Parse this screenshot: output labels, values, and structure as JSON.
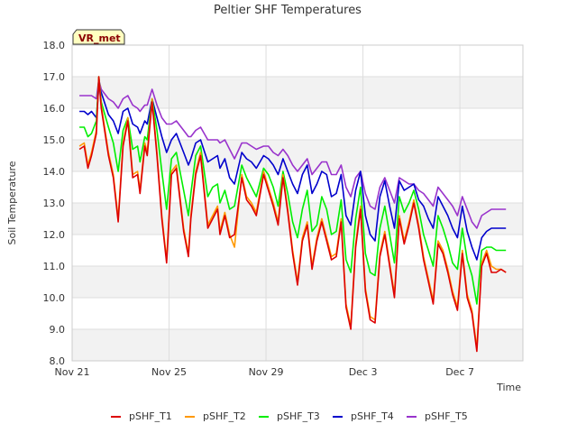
{
  "chart_data": {
    "type": "line",
    "title": "Peltier SHF Temperatures",
    "xlabel": "Time",
    "ylabel": "Soil Temperature",
    "badge": "VR_met",
    "ylim": [
      8.0,
      18.0
    ],
    "yticks": [
      "8.0",
      "9.0",
      "10.0",
      "11.0",
      "12.0",
      "13.0",
      "14.0",
      "15.0",
      "16.0",
      "17.0",
      "18.0"
    ],
    "xlim": [
      0,
      18.6
    ],
    "xticks": [
      {
        "label": "Nov 21",
        "day": 0
      },
      {
        "label": "Nov 25",
        "day": 4
      },
      {
        "label": "Nov 29",
        "day": 8
      },
      {
        "label": "Dec 3",
        "day": 12
      },
      {
        "label": "Dec 7",
        "day": 16
      }
    ],
    "grid": true,
    "legend_position": "bottom",
    "series": [
      {
        "name": "pSHF_T1",
        "color": "#dd0000",
        "x": [
          0.3,
          0.5,
          0.65,
          0.8,
          1.0,
          1.1,
          1.2,
          1.5,
          1.7,
          1.9,
          2.1,
          2.3,
          2.5,
          2.7,
          2.8,
          3.0,
          3.1,
          3.3,
          3.5,
          3.7,
          3.9,
          4.1,
          4.3,
          4.6,
          4.8,
          4.9,
          5.1,
          5.3,
          5.6,
          5.8,
          6.0,
          6.1,
          6.3,
          6.5,
          6.7,
          7.0,
          7.2,
          7.4,
          7.6,
          7.9,
          8.1,
          8.3,
          8.5,
          8.7,
          8.9,
          9.1,
          9.3,
          9.5,
          9.7,
          9.9,
          10.1,
          10.3,
          10.5,
          10.7,
          10.9,
          11.1,
          11.3,
          11.5,
          11.7,
          11.9,
          12.1,
          12.3,
          12.5,
          12.7,
          12.9,
          13.1,
          13.3,
          13.5,
          13.7,
          13.9,
          14.1,
          14.3,
          14.5,
          14.7,
          14.9,
          15.1,
          15.3,
          15.5,
          15.7,
          15.9,
          16.1,
          16.3,
          16.5,
          16.7,
          16.9,
          17.1,
          17.3,
          17.5,
          17.7,
          17.9
        ],
        "y": [
          14.7,
          14.8,
          14.1,
          14.5,
          15.2,
          17.0,
          16.0,
          14.5,
          13.8,
          12.4,
          14.8,
          15.6,
          13.8,
          13.9,
          13.3,
          14.8,
          14.5,
          16.2,
          14.5,
          12.5,
          11.1,
          13.9,
          14.1,
          12.1,
          11.3,
          12.5,
          13.9,
          14.5,
          12.2,
          12.5,
          12.8,
          12.0,
          12.6,
          11.9,
          12.0,
          13.8,
          13.1,
          12.9,
          12.6,
          13.9,
          13.4,
          12.9,
          12.3,
          13.8,
          12.7,
          11.4,
          10.4,
          11.8,
          12.3,
          10.9,
          11.8,
          12.4,
          11.8,
          11.2,
          11.3,
          12.4,
          9.7,
          9.0,
          11.6,
          12.8,
          10.2,
          9.3,
          9.2,
          11.3,
          12.0,
          11.0,
          10.0,
          12.5,
          11.7,
          12.3,
          13.0,
          12.2,
          11.2,
          10.5,
          9.8,
          11.7,
          11.4,
          10.8,
          10.1,
          9.6,
          11.4,
          10.0,
          9.5,
          8.3,
          11.0,
          11.4,
          10.8,
          10.8,
          10.9,
          10.8
        ]
      },
      {
        "name": "pSHF_T2",
        "color": "#ff9900",
        "x": [
          0.3,
          0.5,
          0.65,
          0.8,
          1.0,
          1.1,
          1.2,
          1.5,
          1.7,
          1.9,
          2.1,
          2.3,
          2.5,
          2.7,
          2.8,
          3.0,
          3.1,
          3.3,
          3.5,
          3.7,
          3.9,
          4.1,
          4.3,
          4.6,
          4.8,
          4.9,
          5.1,
          5.3,
          5.6,
          5.8,
          6.0,
          6.1,
          6.3,
          6.5,
          6.7,
          7.0,
          7.2,
          7.4,
          7.6,
          7.9,
          8.1,
          8.3,
          8.5,
          8.7,
          8.9,
          9.1,
          9.3,
          9.5,
          9.7,
          9.9,
          10.1,
          10.3,
          10.5,
          10.7,
          10.9,
          11.1,
          11.3,
          11.5,
          11.7,
          11.9,
          12.1,
          12.3,
          12.5,
          12.7,
          12.9,
          13.1,
          13.3,
          13.5,
          13.7,
          13.9,
          14.1,
          14.3,
          14.5,
          14.7,
          14.9,
          15.1,
          15.3,
          15.5,
          15.7,
          15.9,
          16.1,
          16.3,
          16.5,
          16.7,
          16.9,
          17.1,
          17.3,
          17.5,
          17.7,
          17.9
        ],
        "y": [
          14.8,
          14.9,
          14.2,
          14.6,
          15.3,
          17.0,
          16.1,
          14.6,
          13.9,
          12.5,
          14.9,
          15.7,
          13.9,
          14.0,
          13.4,
          14.9,
          14.6,
          16.3,
          14.6,
          12.6,
          11.2,
          14.0,
          14.2,
          12.2,
          11.4,
          12.6,
          14.0,
          14.6,
          12.3,
          12.6,
          12.9,
          12.1,
          12.7,
          12.0,
          11.6,
          13.9,
          13.2,
          13.0,
          12.7,
          14.0,
          13.5,
          13.0,
          12.4,
          13.9,
          12.8,
          11.5,
          10.5,
          11.9,
          12.4,
          11.0,
          11.9,
          12.5,
          11.9,
          11.3,
          11.4,
          12.5,
          9.8,
          9.1,
          11.7,
          12.9,
          10.3,
          9.4,
          9.3,
          11.4,
          12.1,
          11.1,
          10.1,
          12.6,
          11.8,
          12.4,
          13.1,
          12.3,
          11.3,
          10.6,
          9.9,
          11.8,
          11.5,
          10.9,
          10.2,
          9.7,
          11.5,
          10.1,
          9.6,
          8.4,
          11.1,
          11.5,
          11.0,
          10.9,
          10.9,
          10.8
        ]
      },
      {
        "name": "pSHF_T3",
        "color": "#00ee00",
        "x": [
          0.3,
          0.5,
          0.65,
          0.8,
          1.0,
          1.1,
          1.2,
          1.5,
          1.7,
          1.9,
          2.1,
          2.3,
          2.5,
          2.7,
          2.8,
          3.0,
          3.1,
          3.3,
          3.5,
          3.7,
          3.9,
          4.1,
          4.3,
          4.6,
          4.8,
          4.9,
          5.1,
          5.3,
          5.6,
          5.8,
          6.0,
          6.1,
          6.3,
          6.5,
          6.7,
          7.0,
          7.2,
          7.4,
          7.6,
          7.9,
          8.1,
          8.3,
          8.5,
          8.7,
          8.9,
          9.1,
          9.3,
          9.5,
          9.7,
          9.9,
          10.1,
          10.3,
          10.5,
          10.7,
          10.9,
          11.1,
          11.3,
          11.5,
          11.7,
          11.9,
          12.1,
          12.3,
          12.5,
          12.7,
          12.9,
          13.1,
          13.3,
          13.5,
          13.7,
          13.9,
          14.1,
          14.3,
          14.5,
          14.7,
          14.9,
          15.1,
          15.3,
          15.5,
          15.7,
          15.9,
          16.1,
          16.3,
          16.5,
          16.7,
          16.9,
          17.1,
          17.3,
          17.5,
          17.7,
          17.9
        ],
        "y": [
          15.4,
          15.4,
          15.1,
          15.2,
          15.6,
          17.0,
          16.2,
          15.4,
          14.9,
          14.0,
          15.3,
          15.7,
          14.7,
          14.8,
          14.3,
          15.1,
          15.0,
          16.3,
          15.3,
          14.0,
          12.8,
          14.4,
          14.6,
          13.4,
          12.6,
          13.3,
          14.5,
          14.8,
          13.2,
          13.5,
          13.6,
          13.0,
          13.4,
          12.8,
          12.9,
          14.2,
          13.8,
          13.5,
          13.2,
          14.1,
          13.9,
          13.5,
          12.9,
          14.0,
          13.3,
          12.4,
          11.9,
          12.8,
          13.4,
          12.1,
          12.3,
          13.2,
          12.8,
          12.0,
          12.1,
          13.1,
          11.2,
          10.8,
          12.5,
          13.5,
          11.4,
          10.8,
          10.7,
          12.2,
          12.9,
          12.0,
          11.1,
          13.2,
          12.7,
          13.0,
          13.4,
          12.8,
          12.0,
          11.5,
          11.0,
          12.6,
          12.2,
          11.7,
          11.1,
          10.9,
          12.2,
          11.2,
          10.7,
          9.8,
          11.5,
          11.6,
          11.6,
          11.5,
          11.5,
          11.5
        ]
      },
      {
        "name": "pSHF_T4",
        "color": "#0000cc",
        "x": [
          0.3,
          0.5,
          0.65,
          0.8,
          1.0,
          1.1,
          1.2,
          1.5,
          1.7,
          1.9,
          2.1,
          2.3,
          2.5,
          2.7,
          2.8,
          3.0,
          3.1,
          3.3,
          3.5,
          3.7,
          3.9,
          4.1,
          4.3,
          4.6,
          4.8,
          4.9,
          5.1,
          5.3,
          5.6,
          5.8,
          6.0,
          6.1,
          6.3,
          6.5,
          6.7,
          7.0,
          7.2,
          7.4,
          7.6,
          7.9,
          8.1,
          8.3,
          8.5,
          8.7,
          8.9,
          9.1,
          9.3,
          9.5,
          9.7,
          9.9,
          10.1,
          10.3,
          10.5,
          10.7,
          10.9,
          11.1,
          11.3,
          11.5,
          11.7,
          11.9,
          12.1,
          12.3,
          12.5,
          12.7,
          12.9,
          13.1,
          13.3,
          13.5,
          13.7,
          13.9,
          14.1,
          14.3,
          14.5,
          14.7,
          14.9,
          15.1,
          15.3,
          15.5,
          15.7,
          15.9,
          16.1,
          16.3,
          16.5,
          16.7,
          16.9,
          17.1,
          17.3,
          17.5,
          17.7,
          17.9
        ],
        "y": [
          15.9,
          15.9,
          15.8,
          15.9,
          15.7,
          16.7,
          16.5,
          15.8,
          15.6,
          15.2,
          15.9,
          16.0,
          15.5,
          15.4,
          15.2,
          15.6,
          15.5,
          16.3,
          15.7,
          15.1,
          14.6,
          15.0,
          15.2,
          14.6,
          14.2,
          14.4,
          14.9,
          15.0,
          14.3,
          14.4,
          14.5,
          14.1,
          14.4,
          13.8,
          13.6,
          14.6,
          14.4,
          14.3,
          14.1,
          14.5,
          14.4,
          14.2,
          13.9,
          14.4,
          14.0,
          13.6,
          13.3,
          13.9,
          14.2,
          13.3,
          13.6,
          14.0,
          13.9,
          13.2,
          13.3,
          13.9,
          12.6,
          12.3,
          13.4,
          14.0,
          12.6,
          12.0,
          11.8,
          13.2,
          13.7,
          12.9,
          12.2,
          13.7,
          13.4,
          13.5,
          13.6,
          13.1,
          12.9,
          12.5,
          12.2,
          13.2,
          12.9,
          12.6,
          12.2,
          11.9,
          12.9,
          12.1,
          11.6,
          11.2,
          11.9,
          12.1,
          12.2,
          12.2,
          12.2,
          12.2
        ]
      },
      {
        "name": "pSHF_T5",
        "color": "#9933cc",
        "x": [
          0.3,
          0.5,
          0.65,
          0.8,
          1.0,
          1.1,
          1.2,
          1.5,
          1.7,
          1.9,
          2.1,
          2.3,
          2.5,
          2.7,
          2.8,
          3.0,
          3.1,
          3.3,
          3.5,
          3.7,
          3.9,
          4.1,
          4.3,
          4.6,
          4.8,
          4.9,
          5.1,
          5.3,
          5.6,
          5.8,
          6.0,
          6.1,
          6.3,
          6.5,
          6.7,
          7.0,
          7.2,
          7.4,
          7.6,
          7.9,
          8.1,
          8.3,
          8.5,
          8.7,
          8.9,
          9.1,
          9.3,
          9.5,
          9.7,
          9.9,
          10.1,
          10.3,
          10.5,
          10.7,
          10.9,
          11.1,
          11.3,
          11.5,
          11.7,
          11.9,
          12.1,
          12.3,
          12.5,
          12.7,
          12.9,
          13.1,
          13.3,
          13.5,
          13.7,
          13.9,
          14.1,
          14.3,
          14.5,
          14.7,
          14.9,
          15.1,
          15.3,
          15.5,
          15.7,
          15.9,
          16.1,
          16.3,
          16.5,
          16.7,
          16.9,
          17.1,
          17.3,
          17.5,
          17.7,
          17.9
        ],
        "y": [
          16.4,
          16.4,
          16.4,
          16.4,
          16.3,
          16.9,
          16.6,
          16.3,
          16.2,
          16.0,
          16.3,
          16.4,
          16.1,
          16.0,
          15.9,
          16.1,
          16.1,
          16.6,
          16.1,
          15.7,
          15.5,
          15.5,
          15.6,
          15.3,
          15.1,
          15.1,
          15.3,
          15.4,
          15.0,
          15.0,
          15.0,
          14.9,
          15.0,
          14.7,
          14.4,
          14.9,
          14.9,
          14.8,
          14.7,
          14.8,
          14.8,
          14.6,
          14.5,
          14.7,
          14.5,
          14.2,
          14.0,
          14.2,
          14.4,
          13.9,
          14.1,
          14.3,
          14.3,
          13.9,
          13.9,
          14.2,
          13.5,
          13.2,
          13.8,
          14.0,
          13.3,
          12.9,
          12.8,
          13.5,
          13.8,
          13.4,
          13.0,
          13.8,
          13.7,
          13.6,
          13.6,
          13.4,
          13.3,
          13.1,
          12.9,
          13.5,
          13.3,
          13.1,
          12.9,
          12.6,
          13.2,
          12.8,
          12.4,
          12.2,
          12.6,
          12.7,
          12.8,
          12.8,
          12.8,
          12.8
        ]
      }
    ]
  }
}
